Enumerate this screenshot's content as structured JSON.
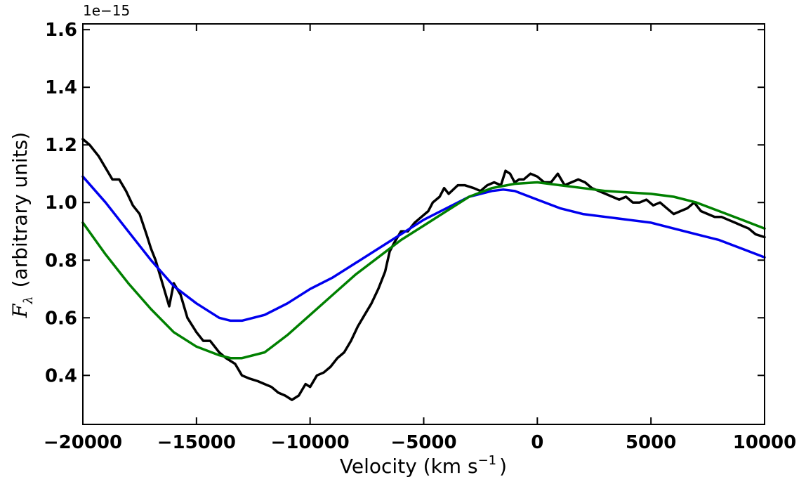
{
  "chart_data": {
    "type": "line",
    "xlabel_prefix": "Velocity (km s",
    "xlabel_exp": "−1",
    "xlabel_suffix": ")",
    "ylabel_symbol": "F",
    "ylabel_sub": "λ",
    "ylabel_text": "(arbitrary units)",
    "y_offset_text": "1e−15",
    "xlim": [
      -20000,
      10000
    ],
    "ylim": [
      0.23,
      1.62
    ],
    "x_ticks": [
      -20000,
      -15000,
      -10000,
      -5000,
      0,
      5000,
      10000
    ],
    "x_tick_labels": [
      "−20000",
      "−15000",
      "−10000",
      "−5000",
      "0",
      "5000",
      "10000"
    ],
    "y_ticks": [
      0.4,
      0.6,
      0.8,
      1.0,
      1.2,
      1.4,
      1.6
    ],
    "y_tick_labels": [
      "0.4",
      "0.6",
      "0.8",
      "1.0",
      "1.2",
      "1.4",
      "1.6"
    ],
    "grid": false,
    "series": [
      {
        "color": "#000000",
        "x": [
          -20000,
          -19700,
          -19300,
          -19000,
          -18700,
          -18400,
          -18100,
          -17800,
          -17500,
          -17200,
          -17000,
          -16800,
          -16500,
          -16200,
          -16000,
          -15700,
          -15400,
          -15000,
          -14700,
          -14400,
          -14000,
          -13700,
          -13300,
          -13000,
          -12700,
          -12300,
          -12000,
          -11700,
          -11400,
          -11100,
          -10800,
          -10500,
          -10200,
          -10000,
          -9700,
          -9400,
          -9100,
          -8800,
          -8500,
          -8200,
          -7900,
          -7600,
          -7300,
          -7000,
          -6700,
          -6500,
          -6300,
          -6000,
          -5700,
          -5400,
          -5100,
          -4800,
          -4600,
          -4300,
          -4100,
          -3900,
          -3500,
          -3200,
          -2800,
          -2500,
          -2200,
          -1900,
          -1600,
          -1400,
          -1200,
          -1000,
          -800,
          -600,
          -300,
          0,
          300,
          600,
          900,
          1200,
          1500,
          1800,
          2100,
          2400,
          2700,
          3000,
          3300,
          3600,
          3900,
          4200,
          4500,
          4800,
          5100,
          5400,
          5700,
          6000,
          6300,
          6600,
          6900,
          7200,
          7500,
          7800,
          8100,
          8400,
          8700,
          9000,
          9300,
          9600,
          10000
        ],
        "values": [
          1.22,
          1.2,
          1.16,
          1.12,
          1.08,
          1.08,
          1.04,
          0.99,
          0.96,
          0.89,
          0.84,
          0.8,
          0.72,
          0.64,
          0.72,
          0.68,
          0.6,
          0.55,
          0.52,
          0.52,
          0.48,
          0.46,
          0.44,
          0.4,
          0.39,
          0.38,
          0.37,
          0.36,
          0.34,
          0.33,
          0.315,
          0.33,
          0.37,
          0.36,
          0.4,
          0.41,
          0.43,
          0.46,
          0.48,
          0.52,
          0.57,
          0.61,
          0.65,
          0.7,
          0.76,
          0.83,
          0.86,
          0.9,
          0.9,
          0.93,
          0.95,
          0.97,
          1.0,
          1.02,
          1.05,
          1.03,
          1.06,
          1.06,
          1.05,
          1.04,
          1.06,
          1.07,
          1.06,
          1.11,
          1.1,
          1.07,
          1.08,
          1.08,
          1.1,
          1.09,
          1.07,
          1.07,
          1.1,
          1.06,
          1.07,
          1.08,
          1.07,
          1.05,
          1.04,
          1.03,
          1.02,
          1.01,
          1.02,
          1.0,
          1.0,
          1.01,
          0.99,
          1.0,
          0.98,
          0.96,
          0.97,
          0.98,
          1.0,
          0.97,
          0.96,
          0.95,
          0.95,
          0.94,
          0.93,
          0.92,
          0.91,
          0.89,
          0.88
        ]
      },
      {
        "color": "#0000ee",
        "x": [
          -20000,
          -19000,
          -18000,
          -17000,
          -16000,
          -15000,
          -14000,
          -13500,
          -13000,
          -12500,
          -12000,
          -11000,
          -10000,
          -9000,
          -8000,
          -7000,
          -6000,
          -5000,
          -4000,
          -3000,
          -2000,
          -1500,
          -1000,
          0,
          1000,
          2000,
          3000,
          4000,
          5000,
          6000,
          7000,
          8000,
          9000,
          10000
        ],
        "values": [
          1.09,
          1.0,
          0.9,
          0.8,
          0.71,
          0.65,
          0.6,
          0.59,
          0.59,
          0.6,
          0.61,
          0.65,
          0.7,
          0.74,
          0.79,
          0.84,
          0.89,
          0.94,
          0.98,
          1.02,
          1.04,
          1.045,
          1.04,
          1.01,
          0.98,
          0.96,
          0.95,
          0.94,
          0.93,
          0.91,
          0.89,
          0.87,
          0.84,
          0.81
        ]
      },
      {
        "color": "#008000",
        "x": [
          -20000,
          -19000,
          -18000,
          -17000,
          -16000,
          -15000,
          -14000,
          -13500,
          -13000,
          -12000,
          -11000,
          -10000,
          -9000,
          -8000,
          -7000,
          -6000,
          -5000,
          -4000,
          -3000,
          -2000,
          -1000,
          0,
          1000,
          2000,
          3000,
          4000,
          5000,
          6000,
          7000,
          8000,
          9000,
          10000
        ],
        "values": [
          0.93,
          0.82,
          0.72,
          0.63,
          0.55,
          0.5,
          0.47,
          0.46,
          0.46,
          0.48,
          0.54,
          0.61,
          0.68,
          0.75,
          0.81,
          0.87,
          0.92,
          0.97,
          1.02,
          1.05,
          1.065,
          1.07,
          1.06,
          1.05,
          1.04,
          1.035,
          1.03,
          1.02,
          1.0,
          0.97,
          0.94,
          0.91
        ]
      }
    ]
  }
}
